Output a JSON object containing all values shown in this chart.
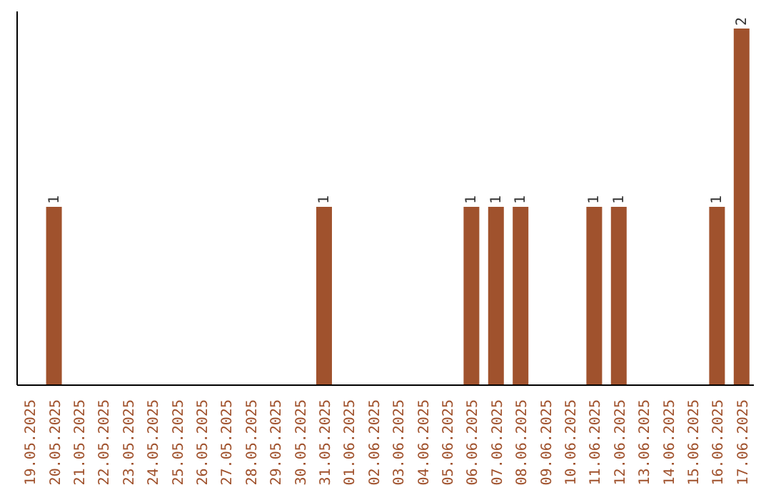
{
  "chart_data": {
    "type": "bar",
    "categories": [
      "19.05.2025",
      "20.05.2025",
      "21.05.2025",
      "22.05.2025",
      "23.05.2025",
      "24.05.2025",
      "25.05.2025",
      "26.05.2025",
      "27.05.2025",
      "28.05.2025",
      "29.05.2025",
      "30.05.2025",
      "31.05.2025",
      "01.06.2025",
      "02.06.2025",
      "03.06.2025",
      "04.06.2025",
      "05.06.2025",
      "06.06.2025",
      "07.06.2025",
      "08.06.2025",
      "09.06.2025",
      "10.06.2025",
      "11.06.2025",
      "12.06.2025",
      "13.06.2025",
      "14.06.2025",
      "15.06.2025",
      "16.06.2025",
      "17.06.2025"
    ],
    "values": [
      0,
      1,
      0,
      0,
      0,
      0,
      0,
      0,
      0,
      0,
      0,
      0,
      1,
      0,
      0,
      0,
      0,
      0,
      1,
      1,
      1,
      0,
      0,
      1,
      1,
      0,
      0,
      0,
      1,
      2
    ],
    "value_labels": [
      null,
      "1",
      null,
      null,
      null,
      null,
      null,
      null,
      null,
      null,
      null,
      null,
      "1",
      null,
      null,
      null,
      null,
      null,
      "1",
      "1",
      "1",
      null,
      null,
      "1",
      "1",
      null,
      null,
      null,
      "1",
      "2"
    ],
    "color": "#a0522d",
    "tick_labels": "x"
  }
}
